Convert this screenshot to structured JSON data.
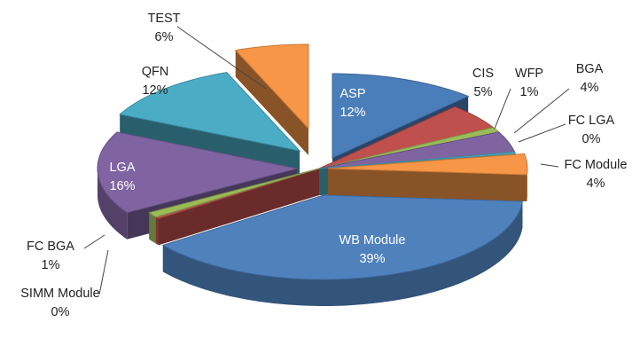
{
  "chart_data": {
    "type": "pie",
    "style": "3d-exploded",
    "title": "",
    "legend": "none",
    "slices": [
      {
        "label": "ASP",
        "value": 12,
        "display": "12%",
        "color": "#4a7ebb"
      },
      {
        "label": "CIS",
        "value": 5,
        "display": "5%",
        "color": "#c0504d"
      },
      {
        "label": "WFP",
        "value": 1,
        "display": "1%",
        "color": "#9bbb59"
      },
      {
        "label": "BGA",
        "value": 4,
        "display": "4%",
        "color": "#8064a2"
      },
      {
        "label": "FC LGA",
        "value": 0,
        "display": "0%",
        "color": "#4bacc6"
      },
      {
        "label": "FC Module",
        "value": 4,
        "display": "4%",
        "color": "#f79646"
      },
      {
        "label": "WB Module",
        "value": 39,
        "display": "39%",
        "color": "#4f81bd"
      },
      {
        "label": "SIMM Module",
        "value": 0,
        "display": "0%",
        "color": "#c0504d"
      },
      {
        "label": "FC BGA",
        "value": 1,
        "display": "1%",
        "color": "#9bbb59"
      },
      {
        "label": "LGA",
        "value": 16,
        "display": "16%",
        "color": "#8064a2"
      },
      {
        "label": "QFN",
        "value": 12,
        "display": "12%",
        "color": "#4bacc6"
      },
      {
        "label": "TEST",
        "value": 6,
        "display": "6%",
        "color": "#f79646"
      }
    ]
  }
}
